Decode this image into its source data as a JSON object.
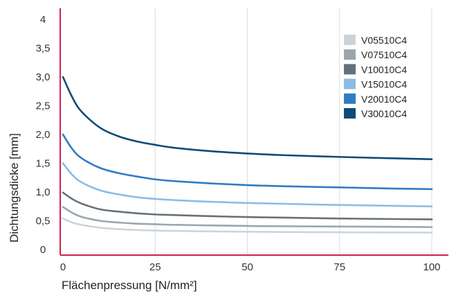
{
  "chart_data": {
    "type": "line",
    "title": "",
    "xlabel": "Flächenpressung [N/mm²]",
    "ylabel": "Dichtungsdicke [mm]",
    "xlim": [
      0,
      100
    ],
    "ylim": [
      0,
      4
    ],
    "x_ticks": [
      0,
      25,
      50,
      75,
      100
    ],
    "x_tick_labels": [
      "0",
      "25",
      "50",
      "75",
      "100"
    ],
    "y_ticks": [
      0,
      0.5,
      1,
      1.5,
      2,
      2.5,
      3,
      3.5,
      4
    ],
    "y_tick_labels": [
      "0",
      "0,5",
      "1,0",
      "1,5",
      "2,0",
      "2,5",
      "3,0",
      "3,5",
      "4"
    ],
    "grid": "vertical",
    "legend_position": "top-right",
    "x": [
      0,
      2.5,
      5,
      10,
      15,
      20,
      25,
      30,
      40,
      50,
      60,
      75,
      90,
      100
    ],
    "series": [
      {
        "name": "V05510C4",
        "color": "#ccd4da",
        "values": [
          0.54,
          0.47,
          0.43,
          0.38,
          0.355,
          0.34,
          0.33,
          0.325,
          0.315,
          0.31,
          0.305,
          0.3,
          0.297,
          0.295
        ]
      },
      {
        "name": "V07510C4",
        "color": "#9aa6ad",
        "values": [
          0.74,
          0.64,
          0.57,
          0.5,
          0.47,
          0.45,
          0.44,
          0.43,
          0.42,
          0.41,
          0.405,
          0.4,
          0.395,
          0.39
        ]
      },
      {
        "name": "V10010C4",
        "color": "#65717a",
        "values": [
          0.99,
          0.88,
          0.8,
          0.7,
          0.66,
          0.63,
          0.61,
          0.6,
          0.58,
          0.565,
          0.555,
          0.54,
          0.53,
          0.525
        ]
      },
      {
        "name": "V15010C4",
        "color": "#8cbbe6",
        "values": [
          1.5,
          1.3,
          1.17,
          1.03,
          0.96,
          0.91,
          0.88,
          0.86,
          0.83,
          0.81,
          0.795,
          0.775,
          0.76,
          0.75
        ]
      },
      {
        "name": "V20010C4",
        "color": "#2f7cc3",
        "values": [
          2.0,
          1.75,
          1.59,
          1.42,
          1.33,
          1.27,
          1.22,
          1.19,
          1.15,
          1.12,
          1.1,
          1.08,
          1.06,
          1.05
        ]
      },
      {
        "name": "V30010C4",
        "color": "#0d4a78",
        "values": [
          3.0,
          2.65,
          2.4,
          2.12,
          1.97,
          1.88,
          1.82,
          1.77,
          1.71,
          1.67,
          1.64,
          1.61,
          1.585,
          1.57
        ]
      }
    ],
    "axis_color": "#d1204b",
    "grid_color": "#dcdcdc"
  }
}
